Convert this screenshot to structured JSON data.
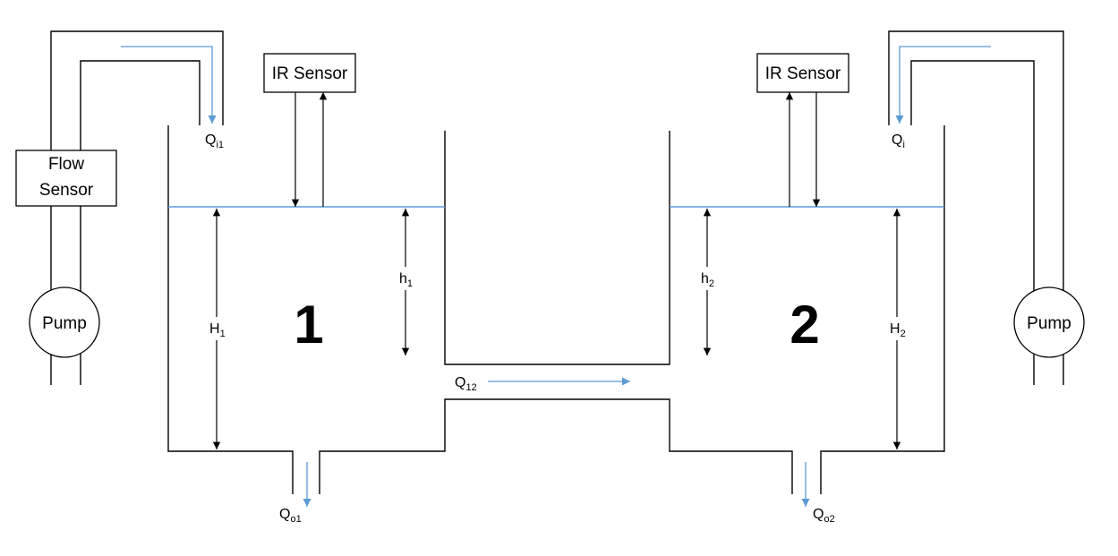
{
  "colors": {
    "water": "#5b9bd5",
    "lines": "#000000",
    "background": "#ffffff"
  },
  "devices": {
    "ir_sensor_1": "IR Sensor",
    "ir_sensor_2": "IR Sensor",
    "flow_sensor_line1": "Flow",
    "flow_sensor_line2": "Sensor",
    "pump_left": "Pump",
    "pump_right": "Pump"
  },
  "tanks": {
    "tank1": {
      "number": "1",
      "level": {
        "main": "h",
        "sub": "1"
      },
      "height": {
        "main": "H",
        "sub": "1"
      }
    },
    "tank2": {
      "number": "2",
      "level": {
        "main": "h",
        "sub": "2"
      },
      "height": {
        "main": "H",
        "sub": "2"
      }
    }
  },
  "flows": {
    "inflow_1": {
      "main": "Q",
      "sub": "i1"
    },
    "inflow_2": {
      "main": "Q",
      "sub": "i"
    },
    "interconnect": {
      "main": "Q",
      "sub": "12"
    },
    "outflow_1": {
      "main": "Q",
      "sub": "o1"
    },
    "outflow_2": {
      "main": "Q",
      "sub": "o2"
    }
  }
}
